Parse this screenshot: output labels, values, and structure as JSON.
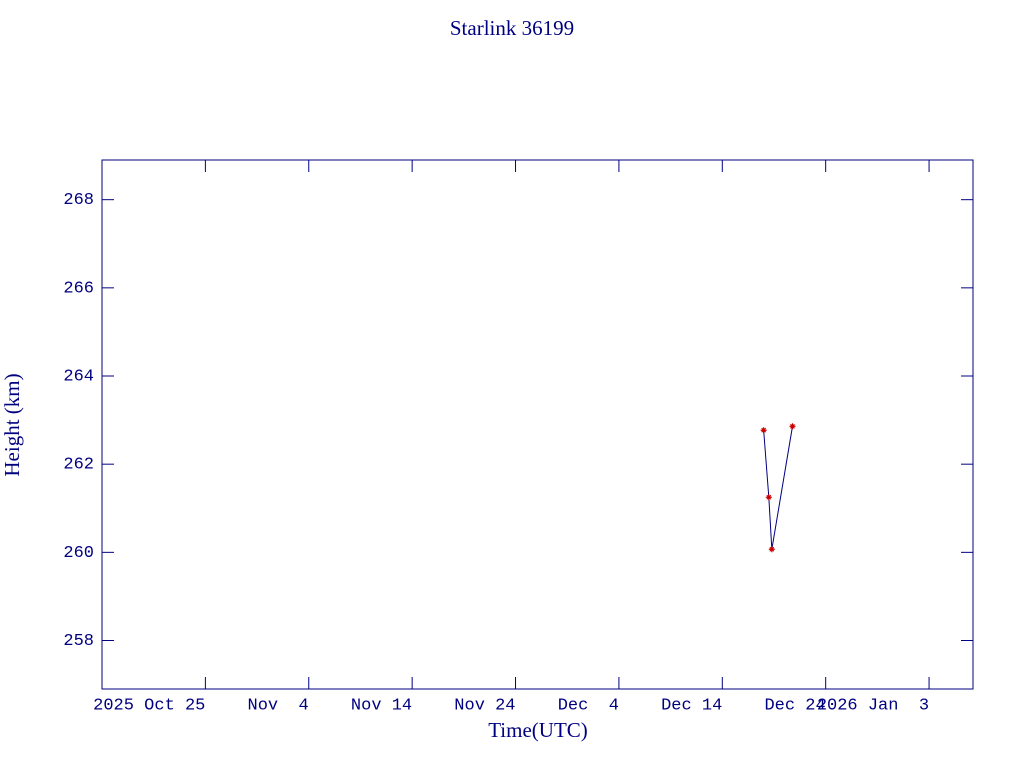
{
  "chart_data": {
    "type": "line",
    "title": "Starlink 36199",
    "x_label": "Time(UTC)",
    "y_label": "Height (km)",
    "x": [
      "2025-12-18T00:00",
      "2025-12-18T12:00",
      "2025-12-18T19:00",
      "2025-12-20T19:00"
    ],
    "series": [
      {
        "name": "Height",
        "color": "#000080",
        "marker_color": "#cc0000",
        "values": [
          262.77,
          261.25,
          260.07,
          262.86
        ]
      }
    ],
    "xlim": [
      "2025-10-15T00:00",
      "2026-01-07T06:00"
    ],
    "xticks": [
      {
        "value": "2025-10-25T00:00",
        "label": "2025 Oct 25"
      },
      {
        "value": "2025-11-04T00:00",
        "label": "Nov  4"
      },
      {
        "value": "2025-11-14T00:00",
        "label": "Nov 14"
      },
      {
        "value": "2025-11-24T00:00",
        "label": "Nov 24"
      },
      {
        "value": "2025-12-04T00:00",
        "label": "Dec  4"
      },
      {
        "value": "2025-12-14T00:00",
        "label": "Dec 14"
      },
      {
        "value": "2025-12-24T00:00",
        "label": "Dec 24"
      },
      {
        "value": "2026-01-03T00:00",
        "label": "2026 Jan  3"
      }
    ],
    "ylim": [
      256.9,
      268.9
    ],
    "yticks": [
      258,
      260,
      262,
      264,
      266,
      268
    ],
    "axis_color": "#000080"
  }
}
